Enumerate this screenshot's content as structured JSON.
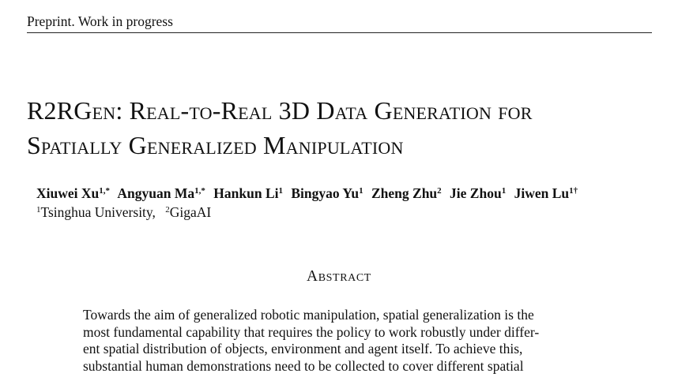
{
  "header": {
    "running_head": "Preprint. Work in progress"
  },
  "title": {
    "line1": "R2RGen: Real-to-Real 3D Data Generation for",
    "line2": "Spatially Generalized Manipulation"
  },
  "authors": [
    {
      "name": "Xiuwei Xu",
      "marks": "1,*"
    },
    {
      "name": "Angyuan Ma",
      "marks": "1,*"
    },
    {
      "name": "Hankun Li",
      "marks": "1"
    },
    {
      "name": "Bingyao Yu",
      "marks": "1"
    },
    {
      "name": "Zheng Zhu",
      "marks": "2"
    },
    {
      "name": "Jie Zhou",
      "marks": "1"
    },
    {
      "name": "Jiwen Lu",
      "marks": "1†"
    }
  ],
  "affiliations": [
    {
      "mark": "1",
      "name": "Tsinghua University,"
    },
    {
      "mark": "2",
      "name": "GigaAI"
    }
  ],
  "abstract": {
    "heading": "Abstract",
    "lines": [
      "Towards the aim of generalized robotic manipulation, spatial generalization is the",
      "most fundamental capability that requires the policy to work robustly under differ-",
      "ent spatial distribution of objects, environment and agent itself. To achieve this,",
      "substantial human demonstrations need to be collected to cover different spatial"
    ]
  }
}
